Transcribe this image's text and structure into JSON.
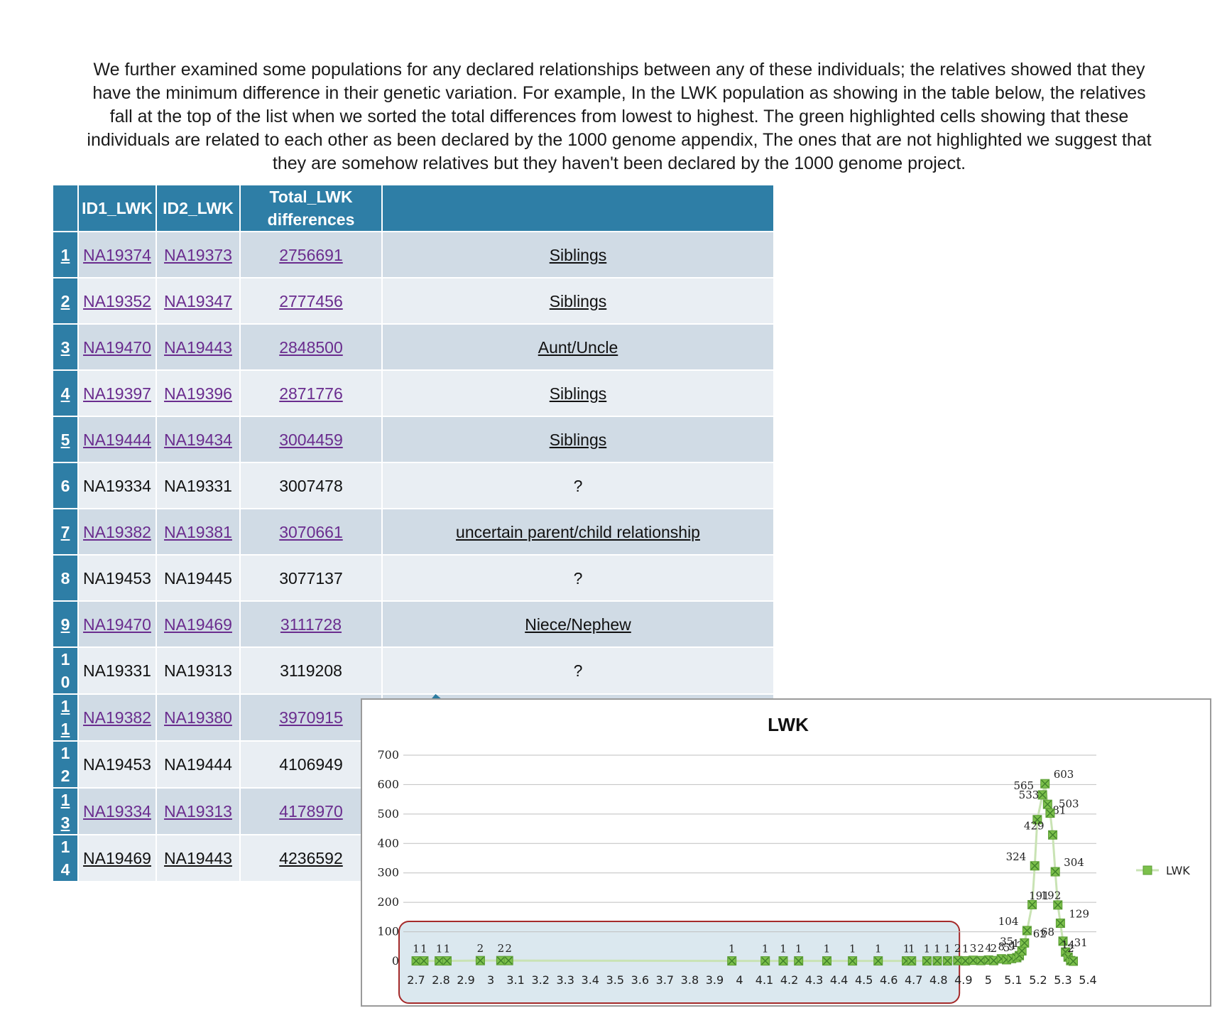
{
  "intro": "We further examined some populations for any declared relationships between any of these individuals; the relatives showed that they have the minimum difference in their genetic variation. For example, In the LWK population as  showing in the table below, the relatives fall at the top of the list when we sorted the total differences from lowest to highest. The green highlighted cells showing that these individuals are related to each other as been declared by the 1000 genome appendix, The ones that are not highlighted we suggest that they are somehow relatives but they haven't been declared by the 1000 genome project.",
  "table": {
    "headers": [
      "",
      "ID1_LWK",
      "ID2_LWK",
      "Total_LWK differences",
      ""
    ],
    "rows": [
      {
        "idx": "1",
        "id1": "NA19374",
        "id2": "NA19373",
        "total": "2756691",
        "relation": "Siblings",
        "linked": true
      },
      {
        "idx": "2",
        "id1": "NA19352",
        "id2": "NA19347",
        "total": "2777456",
        "relation": "Siblings",
        "linked": true
      },
      {
        "idx": "3",
        "id1": "NA19470",
        "id2": "NA19443",
        "total": "2848500",
        "relation": "Aunt/Uncle",
        "linked": true
      },
      {
        "idx": "4",
        "id1": "NA19397",
        "id2": "NA19396",
        "total": "2871776",
        "relation": "Siblings",
        "linked": true
      },
      {
        "idx": "5",
        "id1": "NA19444",
        "id2": "NA19434",
        "total": "3004459",
        "relation": "Siblings",
        "linked": true
      },
      {
        "idx": "6",
        "id1": "NA19334",
        "id2": "NA19331",
        "total": "3007478",
        "relation": "?",
        "linked": false
      },
      {
        "idx": "7",
        "id1": "NA19382",
        "id2": "NA19381",
        "total": "3070661",
        "relation": "uncertain parent/child relationship",
        "linked": true
      },
      {
        "idx": "8",
        "id1": "NA19453",
        "id2": "NA19445",
        "total": "3077137",
        "relation": "?",
        "linked": false
      },
      {
        "idx": "9",
        "id1": "NA19470",
        "id2": "NA19469",
        "total": "3111728",
        "relation": "Niece/Nephew",
        "linked": true
      },
      {
        "idx": "10",
        "id1": "NA19331",
        "id2": "NA19313",
        "total": "3119208",
        "relation": "?",
        "linked": false
      },
      {
        "idx": "11",
        "id1": "NA19382",
        "id2": "NA19380",
        "total": "3970915",
        "relation": "",
        "linked": true
      },
      {
        "idx": "12",
        "id1": "NA19453",
        "id2": "NA19444",
        "total": "4106949",
        "relation": "",
        "linked": false
      },
      {
        "idx": "13",
        "id1": "NA19334",
        "id2": "NA19313",
        "total": "4178970",
        "relation": "",
        "linked": true
      },
      {
        "idx": "14",
        "id1": "NA19469",
        "id2": "NA19443",
        "total": "4236592",
        "relation": "",
        "linked": "partial"
      }
    ]
  },
  "colors": {
    "header_bg": "#2e7ea6",
    "row_odd": "#d0dbe5",
    "row_even": "#e9eef3",
    "link": "#6a2c8e",
    "marker": "#7cc04b",
    "arrow": "#2b7ba0",
    "highlight_fill": "#dbe8ef",
    "highlight_border": "#a52a2a"
  },
  "chart_data": {
    "type": "line",
    "title": "LWK",
    "legend": "LWK",
    "legend_position": "right",
    "xlabel": "",
    "ylabel": "",
    "ylim": [
      0,
      700
    ],
    "yticks": [
      0,
      100,
      200,
      300,
      400,
      500,
      600,
      700
    ],
    "xlim": [
      2.7,
      5.4
    ],
    "xticks": [
      "2.7",
      "2.8",
      "2.9",
      "3",
      "3.1",
      "3.2",
      "3.3",
      "3.4",
      "3.5",
      "3.6",
      "3.7",
      "3.8",
      "3.9",
      "4",
      "4.1",
      "4.2",
      "4.3",
      "4.4",
      "4.5",
      "4.6",
      "4.7",
      "4.8",
      "4.9",
      "5",
      "5.1",
      "5.2",
      "5.3",
      "5.4"
    ],
    "series": [
      {
        "name": "LWK",
        "points": [
          {
            "x": 2.75,
            "y": 1,
            "label": "1"
          },
          {
            "x": 2.78,
            "y": 1,
            "label": "1"
          },
          {
            "x": 2.84,
            "y": 1,
            "label": "1"
          },
          {
            "x": 2.87,
            "y": 1,
            "label": "1"
          },
          {
            "x": 3.0,
            "y": 2,
            "label": "2"
          },
          {
            "x": 3.08,
            "y": 2,
            "label": "2"
          },
          {
            "x": 3.11,
            "y": 2,
            "label": "2"
          },
          {
            "x": 3.98,
            "y": 1,
            "label": "1"
          },
          {
            "x": 4.11,
            "y": 1,
            "label": "1"
          },
          {
            "x": 4.18,
            "y": 1,
            "label": "1"
          },
          {
            "x": 4.24,
            "y": 1,
            "label": "1"
          },
          {
            "x": 4.35,
            "y": 1,
            "label": "1"
          },
          {
            "x": 4.45,
            "y": 1,
            "label": "1"
          },
          {
            "x": 4.55,
            "y": 1,
            "label": "1"
          },
          {
            "x": 4.66,
            "y": 1,
            "label": "1"
          },
          {
            "x": 4.68,
            "y": 1,
            "label": "1"
          },
          {
            "x": 4.74,
            "y": 1,
            "label": "1"
          },
          {
            "x": 4.78,
            "y": 1,
            "label": "1"
          },
          {
            "x": 4.82,
            "y": 1,
            "label": "1"
          },
          {
            "x": 4.86,
            "y": 2,
            "label": "2"
          },
          {
            "x": 4.89,
            "y": 1,
            "label": "1"
          },
          {
            "x": 4.92,
            "y": 3,
            "label": "3"
          },
          {
            "x": 4.95,
            "y": 2,
            "label": "2"
          },
          {
            "x": 4.98,
            "y": 4,
            "label": "4"
          },
          {
            "x": 5.0,
            "y": 2,
            "label": "2"
          },
          {
            "x": 5.03,
            "y": 8,
            "label": "8"
          },
          {
            "x": 5.05,
            "y": 5,
            "label": "5"
          },
          {
            "x": 5.07,
            "y": 9,
            "label": "9"
          },
          {
            "x": 5.09,
            "y": 12,
            "label": "12"
          },
          {
            "x": 5.1,
            "y": 19,
            "label": "19"
          },
          {
            "x": 5.11,
            "y": 35,
            "label": "35"
          },
          {
            "x": 5.12,
            "y": 62,
            "label": "62"
          },
          {
            "x": 5.13,
            "y": 104,
            "label": "104"
          },
          {
            "x": 5.15,
            "y": 192,
            "label": "192"
          },
          {
            "x": 5.16,
            "y": 324,
            "label": "324"
          },
          {
            "x": 5.17,
            "y": 481,
            "label": "481"
          },
          {
            "x": 5.19,
            "y": 565,
            "label": "565"
          },
          {
            "x": 5.2,
            "y": 603,
            "label": "603"
          },
          {
            "x": 5.21,
            "y": 533,
            "label": "533"
          },
          {
            "x": 5.22,
            "y": 503,
            "label": "503"
          },
          {
            "x": 5.23,
            "y": 429,
            "label": "429"
          },
          {
            "x": 5.24,
            "y": 304,
            "label": "304"
          },
          {
            "x": 5.25,
            "y": 191,
            "label": "191"
          },
          {
            "x": 5.26,
            "y": 129,
            "label": "129"
          },
          {
            "x": 5.27,
            "y": 68,
            "label": "68"
          },
          {
            "x": 5.28,
            "y": 31,
            "label": "31"
          },
          {
            "x": 5.29,
            "y": 14,
            "label": "14"
          },
          {
            "x": 5.3,
            "y": 2,
            "label": "2"
          },
          {
            "x": 5.31,
            "y": 0,
            "label": ""
          }
        ]
      }
    ],
    "highlight_range": [
      2.7,
      4.85
    ]
  }
}
